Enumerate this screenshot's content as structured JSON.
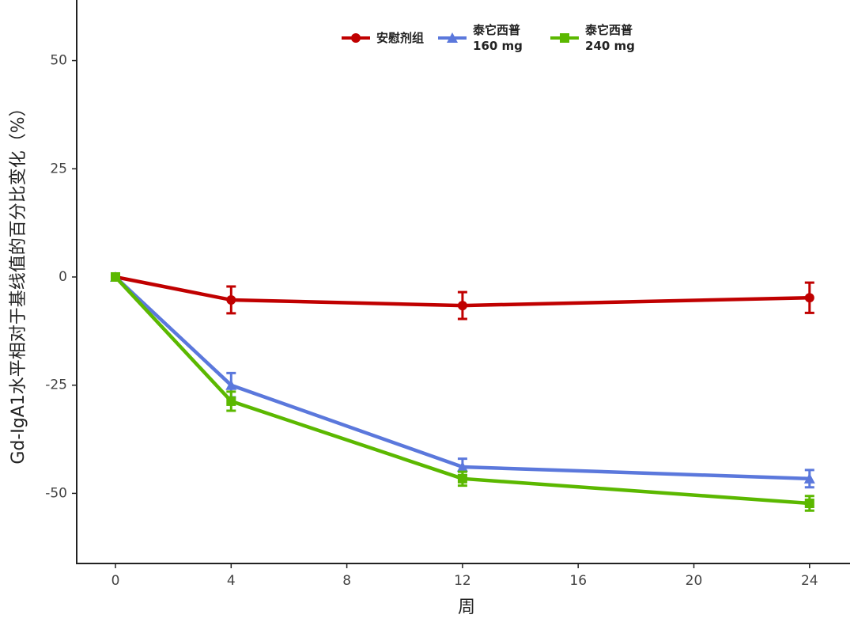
{
  "chart_data": {
    "type": "line",
    "xlabel": "周",
    "ylabel": "Gd-IgA1水平相对于基线值的百分比变化（%）",
    "x": [
      0,
      4,
      12,
      24
    ],
    "series": [
      {
        "name": "安慰剂组",
        "color": "#c00000",
        "marker": "circle",
        "values": [
          0,
          -5.3,
          -6.6,
          -4.8
        ],
        "errors": [
          0,
          3.1,
          3.1,
          3.5
        ]
      },
      {
        "name": "泰它西普 160 mg",
        "color": "#5b78dc",
        "marker": "triangle",
        "values": [
          0,
          -25.0,
          -43.9,
          -46.6
        ],
        "errors": [
          0,
          2.8,
          1.9,
          2.0
        ]
      },
      {
        "name": "泰它西普 240 mg",
        "color": "#5bb800",
        "marker": "square",
        "values": [
          0,
          -28.7,
          -46.6,
          -52.3
        ],
        "errors": [
          0,
          2.2,
          1.6,
          1.7
        ]
      }
    ],
    "xlim": [
      -1.34,
      25.4
    ],
    "ylim": [
      -66.2,
      64
    ],
    "xticks": [
      0,
      4,
      8,
      12,
      16,
      20,
      24
    ],
    "yticks": [
      -50,
      -25,
      0,
      25,
      50
    ],
    "grid": false
  }
}
